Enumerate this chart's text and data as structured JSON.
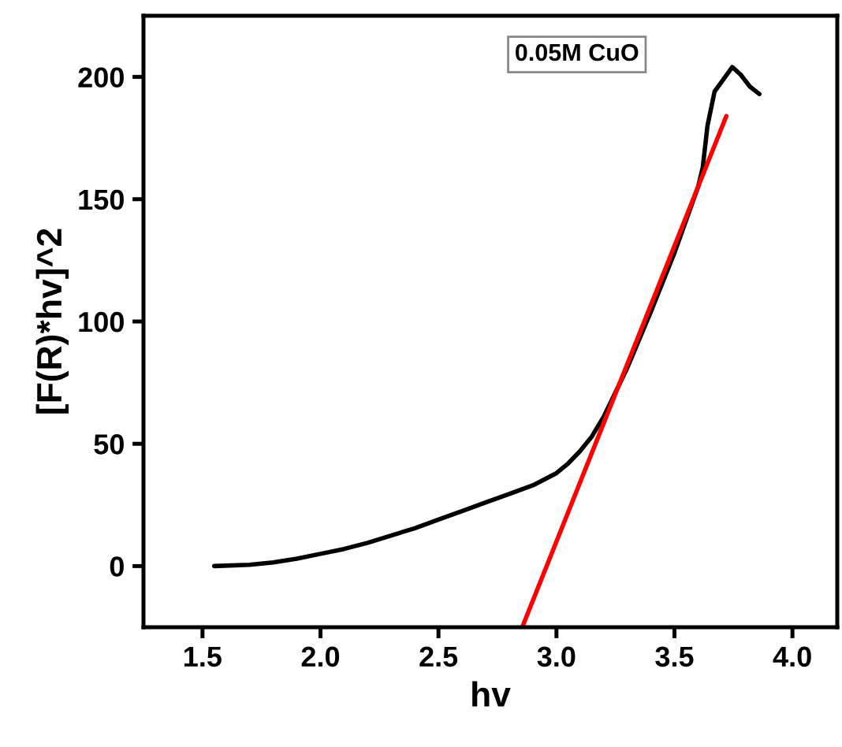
{
  "chart_data": {
    "type": "line",
    "xlabel": "hv",
    "ylabel": "[F(R)*hv]^2",
    "annotations": [
      "0.05M CuO"
    ],
    "xlim": [
      1.25,
      4.19
    ],
    "ylim": [
      -25,
      225
    ],
    "xticks": [
      1.5,
      {
        "value": 2,
        "label": "2.0"
      },
      2.5,
      {
        "value": 3,
        "label": "3.0"
      },
      3.5,
      {
        "value": 4,
        "label": "4.0"
      }
    ],
    "yticks": [
      0,
      50,
      100,
      150,
      200
    ],
    "series": [
      {
        "color": "#000000",
        "x": [
          1.55,
          1.7,
          1.8,
          1.9,
          2.0,
          2.1,
          2.2,
          2.3,
          2.4,
          2.5,
          2.6,
          2.7,
          2.8,
          2.9,
          3.0,
          3.05,
          3.1,
          3.15,
          3.2,
          3.3,
          3.4,
          3.5,
          3.6,
          3.62,
          3.64,
          3.67,
          3.7,
          3.745,
          3.78,
          3.82,
          3.86
        ],
        "values": [
          0,
          0.5,
          1.5,
          3,
          5,
          7,
          9.5,
          12.5,
          15.5,
          19,
          22.5,
          26,
          29.5,
          33,
          38,
          42,
          47,
          53,
          61,
          81,
          104,
          128,
          155,
          163,
          180,
          194,
          198,
          204,
          201,
          196,
          193
        ]
      },
      {
        "color": "#ff0000",
        "x": [
          2.855,
          3.72
        ],
        "values": [
          -25,
          184
        ]
      }
    ]
  }
}
